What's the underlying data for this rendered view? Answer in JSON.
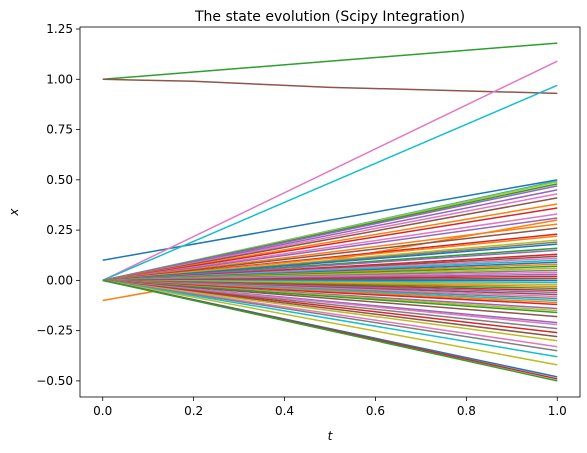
{
  "chart_data": {
    "type": "line",
    "title": "The state evolution (Scipy Integration)",
    "xlabel": "t",
    "ylabel": "x",
    "xlim": [
      -0.05,
      1.05
    ],
    "ylim": [
      -0.58,
      1.26
    ],
    "xticks": [
      0.0,
      0.2,
      0.4,
      0.6,
      0.8,
      1.0
    ],
    "xtick_labels": [
      "0.0",
      "0.2",
      "0.4",
      "0.6",
      "0.8",
      "1.0"
    ],
    "yticks": [
      -0.5,
      -0.25,
      0.0,
      0.25,
      0.5,
      0.75,
      1.0,
      1.25
    ],
    "ytick_labels": [
      "−0.50",
      "−0.25",
      "0.00",
      "0.25",
      "0.50",
      "0.75",
      "1.00",
      "1.25"
    ],
    "grid": false,
    "legend": "none",
    "colors": [
      "#1f77b4",
      "#ff7f0e",
      "#2ca02c",
      "#d62728",
      "#9467bd",
      "#8c564b",
      "#e377c2",
      "#7f7f7f",
      "#bcbd22",
      "#17becf"
    ],
    "series": [
      {
        "x": [
          0,
          1
        ],
        "y": [
          0.1,
          0.5
        ],
        "color": "#1f77b4"
      },
      {
        "x": [
          0,
          1
        ],
        "y": [
          -0.1,
          0.3
        ],
        "color": "#ff7f0e"
      },
      {
        "x": [
          0,
          1
        ],
        "y": [
          1.0,
          1.18
        ],
        "color": "#2ca02c"
      },
      {
        "x": [
          0,
          0.2,
          0.5,
          1
        ],
        "y": [
          1.0,
          0.99,
          0.96,
          0.93
        ],
        "color": "#8c564b"
      },
      {
        "x": [
          0,
          1
        ],
        "y": [
          0.0,
          1.09
        ],
        "color": "#e377c2"
      },
      {
        "x": [
          0,
          1
        ],
        "y": [
          0.0,
          0.97
        ],
        "color": "#17becf"
      },
      {
        "x": [
          0,
          1
        ],
        "y": [
          0.0,
          0.495
        ],
        "color": "#17becf"
      },
      {
        "x": [
          0,
          1
        ],
        "y": [
          0.0,
          0.49
        ],
        "color": "#bcbd22"
      },
      {
        "x": [
          0,
          1
        ],
        "y": [
          0.0,
          0.48
        ],
        "color": "#2ca02c"
      },
      {
        "x": [
          0,
          1
        ],
        "y": [
          0.0,
          0.47
        ],
        "color": "#9467bd"
      },
      {
        "x": [
          0,
          1
        ],
        "y": [
          0.0,
          0.45
        ],
        "color": "#9467bd"
      },
      {
        "x": [
          0,
          1
        ],
        "y": [
          0.0,
          0.43
        ],
        "color": "#e377c2"
      },
      {
        "x": [
          0,
          1
        ],
        "y": [
          0.0,
          0.41
        ],
        "color": "#8c564b"
      },
      {
        "x": [
          0,
          1
        ],
        "y": [
          0.0,
          0.38
        ],
        "color": "#ff7f0e"
      },
      {
        "x": [
          0,
          1
        ],
        "y": [
          0.0,
          0.36
        ],
        "color": "#d62728"
      },
      {
        "x": [
          0,
          1
        ],
        "y": [
          0.0,
          0.33
        ],
        "color": "#e377c2"
      },
      {
        "x": [
          0,
          1
        ],
        "y": [
          0.0,
          0.31
        ],
        "color": "#9467bd"
      },
      {
        "x": [
          0,
          1
        ],
        "y": [
          0.0,
          0.28
        ],
        "color": "#ff7f0e"
      },
      {
        "x": [
          0,
          1
        ],
        "y": [
          0.0,
          0.26
        ],
        "color": "#8c564b"
      },
      {
        "x": [
          0,
          1
        ],
        "y": [
          0.0,
          0.23
        ],
        "color": "#d62728"
      },
      {
        "x": [
          0,
          1
        ],
        "y": [
          0.0,
          0.22
        ],
        "color": "#ff7f0e"
      },
      {
        "x": [
          0,
          1
        ],
        "y": [
          0.0,
          0.2
        ],
        "color": "#bcbd22"
      },
      {
        "x": [
          0,
          1
        ],
        "y": [
          0.0,
          0.19
        ],
        "color": "#7f7f7f"
      },
      {
        "x": [
          0,
          1
        ],
        "y": [
          0.0,
          0.18
        ],
        "color": "#1f77b4"
      },
      {
        "x": [
          0,
          1
        ],
        "y": [
          0.0,
          0.16
        ],
        "color": "#2ca02c"
      },
      {
        "x": [
          0,
          1
        ],
        "y": [
          0.0,
          0.15
        ],
        "color": "#9467bd"
      },
      {
        "x": [
          0,
          1
        ],
        "y": [
          0.0,
          0.13
        ],
        "color": "#d62728"
      },
      {
        "x": [
          0,
          1
        ],
        "y": [
          0.0,
          0.12
        ],
        "color": "#8c564b"
      },
      {
        "x": [
          0,
          1
        ],
        "y": [
          0.0,
          0.11
        ],
        "color": "#e377c2"
      },
      {
        "x": [
          0,
          1
        ],
        "y": [
          0.0,
          0.1
        ],
        "color": "#17becf"
      },
      {
        "x": [
          0,
          1
        ],
        "y": [
          0.0,
          0.09
        ],
        "color": "#1f77b4"
      },
      {
        "x": [
          0,
          1
        ],
        "y": [
          0.0,
          0.08
        ],
        "color": "#ff7f0e"
      },
      {
        "x": [
          0,
          1
        ],
        "y": [
          0.0,
          0.07
        ],
        "color": "#2ca02c"
      },
      {
        "x": [
          0,
          1
        ],
        "y": [
          0.0,
          0.06
        ],
        "color": "#bcbd22"
      },
      {
        "x": [
          0,
          1
        ],
        "y": [
          0.0,
          0.05
        ],
        "color": "#7f7f7f"
      },
      {
        "x": [
          0,
          1
        ],
        "y": [
          0.0,
          0.04
        ],
        "color": "#e377c2"
      },
      {
        "x": [
          0,
          1
        ],
        "y": [
          0.0,
          0.03
        ],
        "color": "#9467bd"
      },
      {
        "x": [
          0,
          1
        ],
        "y": [
          0.0,
          0.02
        ],
        "color": "#d62728"
      },
      {
        "x": [
          0,
          1
        ],
        "y": [
          0.0,
          0.01
        ],
        "color": "#8c564b"
      },
      {
        "x": [
          0,
          1
        ],
        "y": [
          0.0,
          0.0
        ],
        "color": "#1f77b4"
      },
      {
        "x": [
          0,
          1
        ],
        "y": [
          0.0,
          -0.01
        ],
        "color": "#17becf"
      },
      {
        "x": [
          0,
          1
        ],
        "y": [
          0.0,
          -0.02
        ],
        "color": "#bcbd22"
      },
      {
        "x": [
          0,
          1
        ],
        "y": [
          0.0,
          -0.03
        ],
        "color": "#ff7f0e"
      },
      {
        "x": [
          0,
          1
        ],
        "y": [
          0.0,
          -0.04
        ],
        "color": "#2ca02c"
      },
      {
        "x": [
          0,
          1
        ],
        "y": [
          0.0,
          -0.05
        ],
        "color": "#d62728"
      },
      {
        "x": [
          0,
          1
        ],
        "y": [
          0.0,
          -0.06
        ],
        "color": "#9467bd"
      },
      {
        "x": [
          0,
          1
        ],
        "y": [
          0.0,
          -0.07
        ],
        "color": "#8c564b"
      },
      {
        "x": [
          0,
          1
        ],
        "y": [
          0.0,
          -0.08
        ],
        "color": "#e377c2"
      },
      {
        "x": [
          0,
          1
        ],
        "y": [
          0.0,
          -0.09
        ],
        "color": "#7f7f7f"
      },
      {
        "x": [
          0,
          1
        ],
        "y": [
          0.0,
          -0.1
        ],
        "color": "#17becf"
      },
      {
        "x": [
          0,
          1
        ],
        "y": [
          0.0,
          -0.11
        ],
        "color": "#ff7f0e"
      },
      {
        "x": [
          0,
          1
        ],
        "y": [
          0.0,
          -0.12
        ],
        "color": "#d62728"
      },
      {
        "x": [
          0,
          1
        ],
        "y": [
          0.0,
          -0.14
        ],
        "color": "#9467bd"
      },
      {
        "x": [
          0,
          1
        ],
        "y": [
          0.0,
          -0.15
        ],
        "color": "#bcbd22"
      },
      {
        "x": [
          0,
          1
        ],
        "y": [
          0.0,
          -0.16
        ],
        "color": "#2ca02c"
      },
      {
        "x": [
          0,
          1
        ],
        "y": [
          0.0,
          -0.18
        ],
        "color": "#8c564b"
      },
      {
        "x": [
          0,
          1
        ],
        "y": [
          0.0,
          -0.21
        ],
        "color": "#9467bd"
      },
      {
        "x": [
          0,
          1
        ],
        "y": [
          0.0,
          -0.22
        ],
        "color": "#e377c2"
      },
      {
        "x": [
          0,
          1
        ],
        "y": [
          0.0,
          -0.24
        ],
        "color": "#7f7f7f"
      },
      {
        "x": [
          0,
          1
        ],
        "y": [
          0.0,
          -0.26
        ],
        "color": "#d62728"
      },
      {
        "x": [
          0,
          1
        ],
        "y": [
          0.0,
          -0.28
        ],
        "color": "#8c564b"
      },
      {
        "x": [
          0,
          1
        ],
        "y": [
          0.0,
          -0.3
        ],
        "color": "#bcbd22"
      },
      {
        "x": [
          0,
          1
        ],
        "y": [
          0.0,
          -0.33
        ],
        "color": "#e377c2"
      },
      {
        "x": [
          0,
          1
        ],
        "y": [
          0.0,
          -0.35
        ],
        "color": "#7f7f7f"
      },
      {
        "x": [
          0,
          1
        ],
        "y": [
          0.0,
          -0.38
        ],
        "color": "#17becf"
      },
      {
        "x": [
          0,
          1
        ],
        "y": [
          0.0,
          -0.42
        ],
        "color": "#bcbd22"
      },
      {
        "x": [
          0,
          1
        ],
        "y": [
          0.0,
          -0.48
        ],
        "color": "#1f77b4"
      },
      {
        "x": [
          0,
          1
        ],
        "y": [
          0.0,
          -0.49
        ],
        "color": "#d62728"
      },
      {
        "x": [
          0,
          1
        ],
        "y": [
          0.0,
          -0.5
        ],
        "color": "#2ca02c"
      }
    ]
  }
}
